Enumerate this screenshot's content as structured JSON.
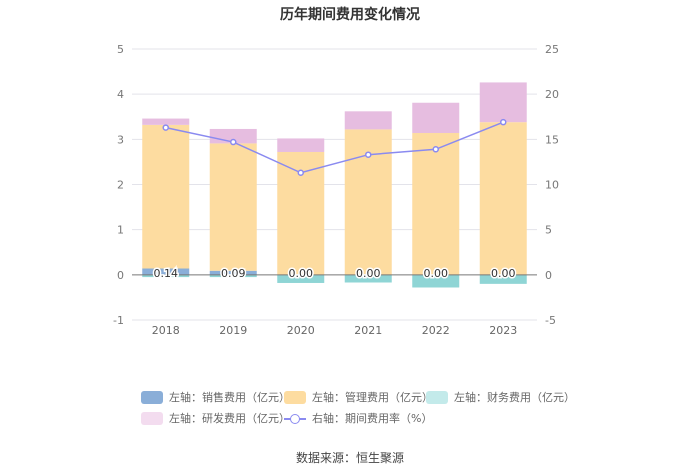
{
  "chart_data": {
    "type": "bar",
    "title": "历年期间费用变化情况",
    "categories": [
      "2018",
      "2019",
      "2020",
      "2021",
      "2022",
      "2023"
    ],
    "left_axis": {
      "min": -1,
      "max": 5,
      "ticks": [
        "-1",
        "0",
        "1",
        "2",
        "3",
        "4",
        "5"
      ]
    },
    "right_axis": {
      "min": -5,
      "max": 25,
      "ticks": [
        "-5",
        "0",
        "5",
        "10",
        "15",
        "20",
        "25"
      ]
    },
    "series": [
      {
        "name": "左轴：销售费用（亿元）",
        "axis": "left",
        "type": "bar",
        "color": "#8aaed8",
        "values": [
          0.14,
          0.09,
          0.0,
          0.0,
          0.0,
          0.0
        ],
        "labels": [
          "0.14",
          "0.09",
          "0.00",
          "0.00",
          "0.00",
          "0.00"
        ]
      },
      {
        "name": "左轴：管理费用（亿元）",
        "axis": "left",
        "type": "bar",
        "color": "#fddca0",
        "values": [
          3.18,
          2.82,
          2.72,
          3.22,
          3.14,
          3.38
        ]
      },
      {
        "name": "左轴：财务费用（亿元）",
        "axis": "left",
        "type": "bar",
        "color": "#8fd5d5",
        "values": [
          -0.05,
          -0.05,
          -0.18,
          -0.17,
          -0.28,
          -0.2
        ]
      },
      {
        "name": "左轴：研发费用（亿元）",
        "axis": "left",
        "type": "bar",
        "color": "#e6bde0",
        "values": [
          0.14,
          0.32,
          0.3,
          0.4,
          0.67,
          0.88
        ]
      },
      {
        "name": "右轴：期间费用率（%）",
        "axis": "right",
        "type": "line",
        "color": "#8a8af0",
        "values": [
          16.3,
          14.7,
          11.3,
          13.3,
          13.9,
          16.9
        ]
      }
    ]
  },
  "source": "数据来源：恒生聚源"
}
